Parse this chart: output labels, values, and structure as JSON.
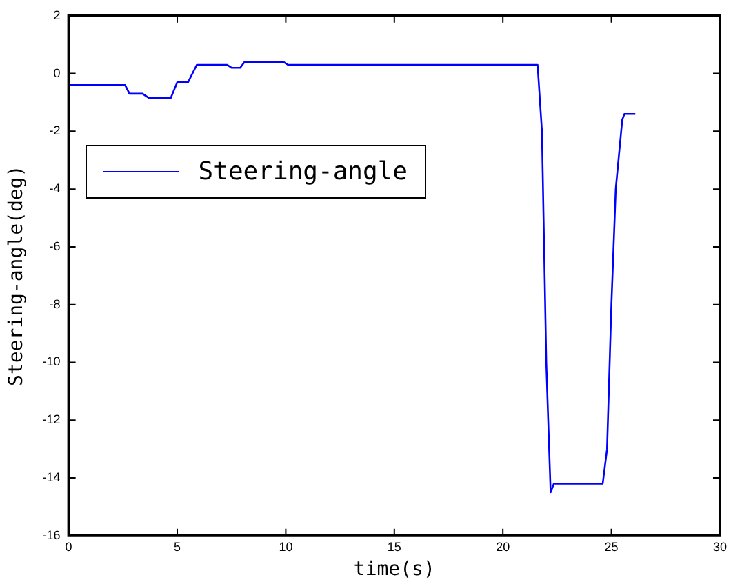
{
  "chart_data": {
    "type": "line",
    "xlabel": "time(s)",
    "ylabel": "Steering-angle(deg)",
    "xlim": [
      0,
      30
    ],
    "xticks": [
      0,
      5,
      10,
      15,
      20,
      25,
      30
    ],
    "ylim": [
      -16,
      2
    ],
    "yticks": [
      -16,
      -14,
      -12,
      -10,
      -8,
      -6,
      -4,
      -2,
      0,
      2
    ],
    "grid": false,
    "legend": "left",
    "marker": "none",
    "line_style": "solid",
    "series": [
      {
        "name": "Steering-angle",
        "color": "#0000ff",
        "x": [
          0,
          2.6,
          2.8,
          3.4,
          3.7,
          4.7,
          5.0,
          5.5,
          5.9,
          7.3,
          7.5,
          7.9,
          8.1,
          9.9,
          10.1,
          21.6,
          21.8,
          22.0,
          22.2,
          22.35,
          22.5,
          24.6,
          24.8,
          25.0,
          25.2,
          25.5,
          25.6,
          26.1
        ],
        "values": [
          -0.4,
          -0.4,
          -0.7,
          -0.7,
          -0.85,
          -0.85,
          -0.3,
          -0.3,
          0.3,
          0.3,
          0.2,
          0.2,
          0.4,
          0.4,
          0.3,
          0.3,
          -2,
          -10,
          -14.5,
          -14.2,
          -14.2,
          -14.2,
          -13,
          -8,
          -4,
          -1.6,
          -1.4,
          -1.4
        ]
      }
    ]
  }
}
